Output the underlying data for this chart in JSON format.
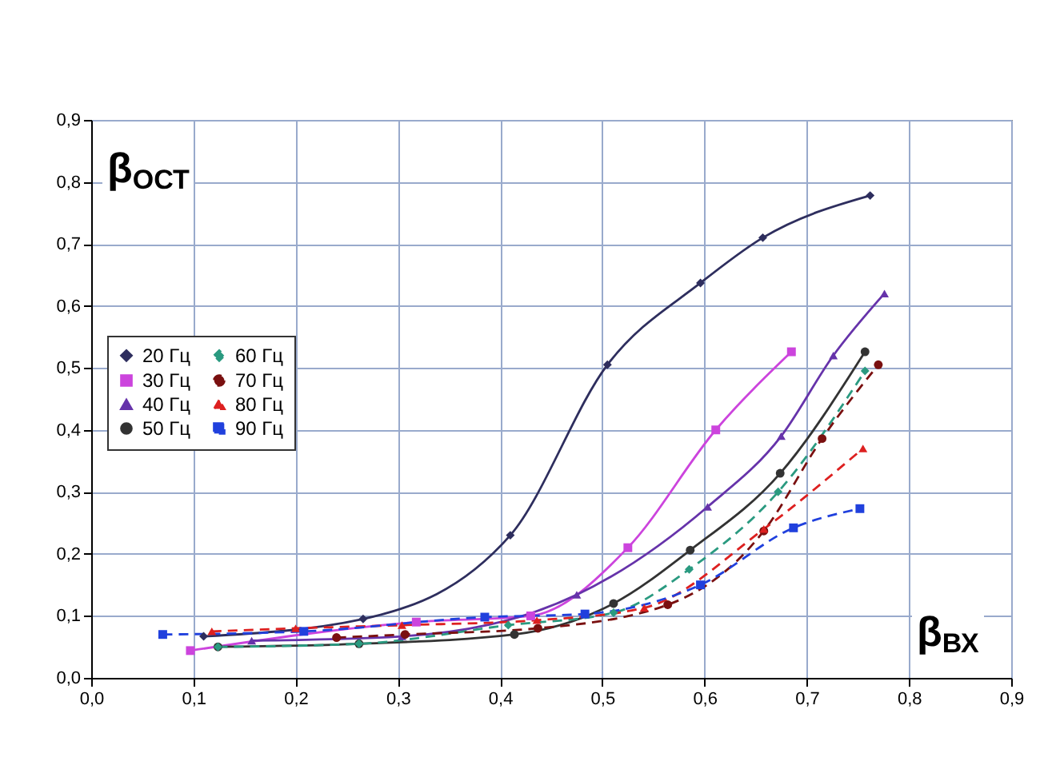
{
  "chart_data": {
    "type": "line",
    "xlabel": "β$_{ВХ}$",
    "ylabel": "β$_{ОСТ}$",
    "xlim": [
      0,
      0.9
    ],
    "ylim": [
      0,
      0.9
    ],
    "xticks": [
      {
        "value": 0,
        "label": "0,0"
      },
      {
        "value": 0.1,
        "label": "0,1"
      },
      {
        "value": 0.2,
        "label": "0,2"
      },
      {
        "value": 0.3,
        "label": "0,3"
      },
      {
        "value": 0.4,
        "label": "0,4"
      },
      {
        "value": 0.5,
        "label": "0,5"
      },
      {
        "value": 0.6,
        "label": "0,6"
      },
      {
        "value": 0.7,
        "label": "0,7"
      },
      {
        "value": 0.8,
        "label": "0,8"
      },
      {
        "value": 0.9,
        "label": "0,9"
      }
    ],
    "yticks": [
      {
        "value": 0,
        "label": "0,0"
      },
      {
        "value": 0.1,
        "label": "0,1"
      },
      {
        "value": 0.2,
        "label": "0,2"
      },
      {
        "value": 0.3,
        "label": "0,3"
      },
      {
        "value": 0.4,
        "label": "0,4"
      },
      {
        "value": 0.5,
        "label": "0,5"
      },
      {
        "value": 0.6,
        "label": "0,6"
      },
      {
        "value": 0.7,
        "label": "0,7"
      },
      {
        "value": 0.8,
        "label": "0,8"
      },
      {
        "value": 0.9,
        "label": "0,9"
      }
    ],
    "grid": true,
    "legend": "left",
    "series": [
      {
        "name": "20 Гц",
        "color": "#2e2e5e",
        "marker": "diamond",
        "line_style": "solid",
        "x": [
          0.11,
          0.266,
          0.41,
          0.505,
          0.596,
          0.657,
          0.762
        ],
        "values": [
          0.067,
          0.095,
          0.23,
          0.505,
          0.637,
          0.71,
          0.778
        ]
      },
      {
        "name": "30 Гц",
        "color": "#cc44dd",
        "marker": "square",
        "line_style": "solid",
        "x": [
          0.097,
          0.318,
          0.43,
          0.525,
          0.611,
          0.685
        ],
        "values": [
          0.044,
          0.09,
          0.1,
          0.21,
          0.4,
          0.526
        ]
      },
      {
        "name": "40 Гц",
        "color": "#6633aa",
        "marker": "triangle",
        "line_style": "solid",
        "x": [
          0.157,
          0.304,
          0.475,
          0.603,
          0.675,
          0.726,
          0.776
        ],
        "values": [
          0.06,
          0.067,
          0.134,
          0.276,
          0.39,
          0.52,
          0.62
        ]
      },
      {
        "name": "50 Гц",
        "color": "#333333",
        "marker": "circle",
        "line_style": "solid",
        "x": [
          0.124,
          0.262,
          0.414,
          0.511,
          0.586,
          0.674,
          0.757
        ],
        "values": [
          0.05,
          0.055,
          0.07,
          0.12,
          0.206,
          0.33,
          0.526
        ]
      },
      {
        "name": "60 Гц",
        "color": "#2a9a80",
        "marker": "diamond",
        "line_style": "dashed",
        "x": [
          0.124,
          0.262,
          0.408,
          0.511,
          0.585,
          0.672,
          0.757
        ],
        "values": [
          0.05,
          0.055,
          0.085,
          0.105,
          0.175,
          0.3,
          0.495
        ]
      },
      {
        "name": "70 Гц",
        "color": "#7a1010",
        "marker": "circle",
        "line_style": "dashed",
        "x": [
          0.24,
          0.307,
          0.437,
          0.564,
          0.658,
          0.715,
          0.77
        ],
        "values": [
          0.065,
          0.07,
          0.08,
          0.118,
          0.237,
          0.386,
          0.505
        ]
      },
      {
        "name": "80 Гц",
        "color": "#dd2020",
        "marker": "triangle",
        "line_style": "dashed",
        "x": [
          0.118,
          0.2,
          0.304,
          0.436,
          0.541,
          0.658,
          0.755
        ],
        "values": [
          0.075,
          0.08,
          0.085,
          0.093,
          0.113,
          0.24,
          0.37
        ]
      },
      {
        "name": "90 Гц",
        "color": "#2040dd",
        "marker": "square",
        "line_style": "dashed",
        "x": [
          0.07,
          0.208,
          0.385,
          0.483,
          0.596,
          0.687,
          0.752
        ],
        "values": [
          0.07,
          0.075,
          0.098,
          0.103,
          0.15,
          0.242,
          0.273
        ]
      }
    ]
  }
}
